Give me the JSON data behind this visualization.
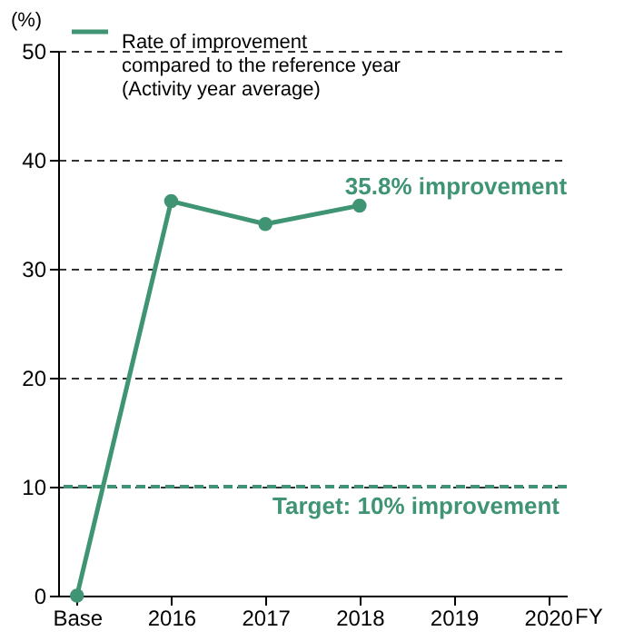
{
  "chart_data": {
    "type": "line",
    "ylabel": "(%)",
    "xlabel": "FY",
    "categories": [
      "Base",
      "2016",
      "2017",
      "2018",
      "2019",
      "2020"
    ],
    "series": [
      {
        "name": "Rate of improvement\ncompared  to the reference year\n(Activity year average)",
        "color": "#3f9474",
        "values": [
          0,
          36.2,
          34.1,
          35.8,
          null,
          null
        ]
      }
    ],
    "ylim": [
      0,
      50
    ],
    "yticks": [
      0,
      10,
      20,
      30,
      40,
      50
    ],
    "grid": "y",
    "legend": "top left",
    "marker": "circle",
    "line_style": "solid",
    "annotations": [
      {
        "text": "35.8% improvement",
        "x": "2018",
        "y": 35.8
      }
    ],
    "ref_lines": [
      {
        "axis": "y",
        "value": 10,
        "label": "Target: 10% improvement",
        "color": "#3f9474",
        "line_style": "dashed"
      }
    ]
  }
}
